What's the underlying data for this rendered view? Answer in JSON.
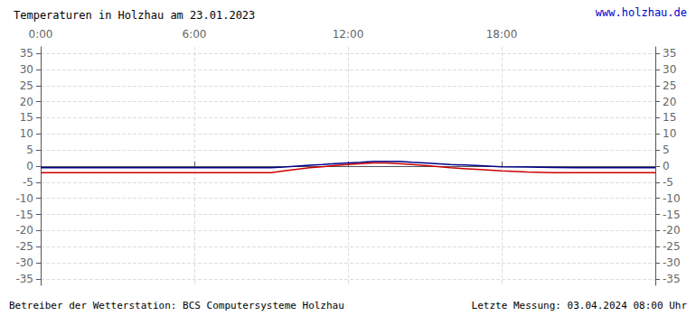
{
  "chart_data": {
    "type": "line",
    "title": "Temperaturen in Holzhau am 23.01.2023",
    "annotations": [
      "www.holzhau.de",
      "Betreiber der Wetterstation: BCS Computersysteme Holzhau",
      "Letzte Messung: 03.04.2024 08:00 Uhr"
    ],
    "x": [
      0,
      30,
      60,
      120,
      180,
      240,
      300,
      360,
      420,
      480,
      540,
      570,
      600,
      630,
      660,
      690,
      720,
      750,
      780,
      810,
      840,
      870,
      900,
      960,
      1020,
      1080,
      1140,
      1200,
      1260,
      1320,
      1380,
      1440
    ],
    "series": [
      {
        "color": "#00008b",
        "values": [
          -0.5,
          -0.5,
          -0.5,
          -0.5,
          -0.5,
          -0.5,
          -0.5,
          -0.5,
          -0.5,
          -0.5,
          -0.5,
          -0.3,
          0.0,
          0.3,
          0.5,
          0.8,
          1.0,
          1.2,
          1.5,
          1.5,
          1.5,
          1.2,
          1.0,
          0.5,
          0.2,
          -0.2,
          -0.3,
          -0.4,
          -0.5,
          -0.5,
          -0.5,
          -0.5
        ]
      },
      {
        "color": "#cc0000",
        "values": [
          -2.0,
          -2.0,
          -2.0,
          -2.0,
          -2.0,
          -2.0,
          -2.0,
          -2.0,
          -2.0,
          -2.0,
          -2.0,
          -1.5,
          -1.0,
          -0.5,
          -0.2,
          0.2,
          0.5,
          0.8,
          1.0,
          1.0,
          0.8,
          0.5,
          0.2,
          -0.5,
          -1.0,
          -1.5,
          -1.8,
          -2.0,
          -2.0,
          -2.0,
          -2.0,
          -2.0
        ]
      }
    ],
    "xlim": [
      0,
      1440
    ],
    "xticks": [
      {
        "value": 0,
        "label": "0:00"
      },
      {
        "value": 360,
        "label": "6:00"
      },
      {
        "value": 720,
        "label": "12:00"
      },
      {
        "value": 1080,
        "label": "18:00"
      },
      {
        "value": 1440,
        "label": ""
      }
    ],
    "ylim": [
      -37,
      37
    ],
    "yticks": [
      -35,
      -30,
      -25,
      -20,
      -15,
      -10,
      -5,
      0,
      5,
      10,
      15,
      20,
      25,
      30,
      35
    ],
    "y2lim": [
      -37,
      37
    ],
    "y2ticks": [
      -35,
      -30,
      -25,
      -20,
      -15,
      -10,
      -5,
      0,
      5,
      10,
      15,
      20,
      25,
      30,
      35
    ],
    "grid": true
  }
}
